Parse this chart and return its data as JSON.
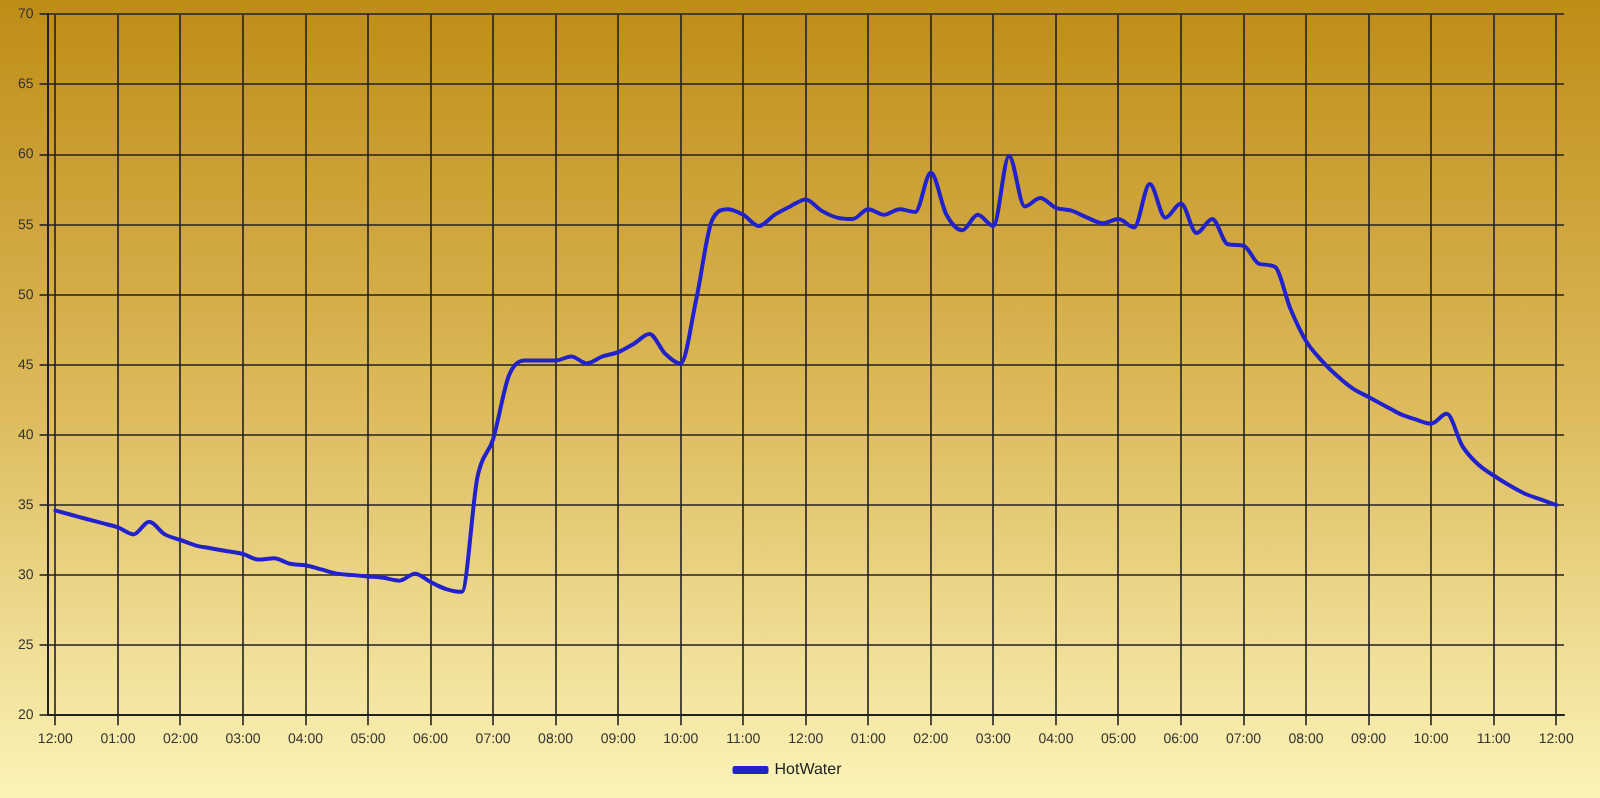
{
  "chart_data": {
    "type": "line",
    "categories": [
      "12:00",
      null,
      null,
      null,
      "01:00",
      null,
      null,
      null,
      "02:00",
      null,
      null,
      null,
      "03:00",
      null,
      null,
      null,
      "04:00",
      null,
      null,
      null,
      "05:00",
      null,
      null,
      null,
      "06:00",
      null,
      null,
      null,
      "07:00",
      null,
      null,
      null,
      "08:00",
      null,
      null,
      null,
      "09:00",
      null,
      null,
      null,
      "10:00",
      null,
      null,
      null,
      "11:00",
      null,
      null,
      null,
      "12:00",
      null,
      null,
      null,
      "01:00",
      null,
      null,
      null,
      "02:00",
      null,
      null,
      null,
      "03:00",
      null,
      null,
      null,
      "04:00",
      null,
      null,
      null,
      "05:00",
      null,
      null,
      null,
      "06:00",
      null,
      null,
      null,
      "07:00",
      null,
      null,
      null,
      "08:00",
      null,
      null,
      null,
      "09:00",
      null,
      null,
      null,
      "10:00",
      null,
      null,
      null,
      "11:00",
      null,
      null,
      null,
      "12:00"
    ],
    "series": [
      {
        "name": "HotWater",
        "color": "#2222cc",
        "values": [
          34.6,
          34.3,
          34.0,
          33.7,
          33.4,
          32.9,
          33.8,
          32.9,
          32.5,
          32.1,
          31.9,
          31.7,
          31.5,
          31.1,
          31.2,
          30.8,
          30.7,
          30.4,
          30.1,
          30.0,
          29.9,
          29.8,
          29.6,
          30.1,
          29.5,
          29.0,
          28.8,
          37.0,
          39.7,
          44.2,
          45.3,
          45.3,
          45.3,
          45.6,
          45.1,
          45.6,
          45.9,
          46.5,
          47.2,
          45.8,
          45.1,
          49.7,
          55.3,
          56.1,
          55.7,
          54.9,
          55.7,
          56.3,
          56.8,
          56.0,
          55.5,
          55.4,
          56.1,
          55.7,
          56.1,
          55.9,
          58.7,
          55.7,
          54.6,
          55.7,
          54.9,
          59.9,
          56.3,
          56.9,
          56.2,
          56.0,
          55.5,
          55.1,
          55.4,
          54.8,
          57.9,
          55.5,
          56.5,
          54.4,
          55.4,
          53.6,
          53.5,
          52.2,
          52.0,
          49.0,
          46.7,
          45.3,
          44.2,
          43.3,
          42.7,
          42.1,
          41.5,
          41.1,
          40.8,
          41.5,
          39.2,
          37.9,
          37.1,
          36.4,
          35.8,
          35.4,
          35.0
        ]
      }
    ],
    "ylim": [
      20,
      70
    ],
    "yticks": [
      20,
      25,
      30,
      35,
      40,
      45,
      50,
      55,
      60,
      65,
      70
    ],
    "grid": true,
    "legend": "bottom",
    "marker": "none",
    "line_style": "solid"
  }
}
